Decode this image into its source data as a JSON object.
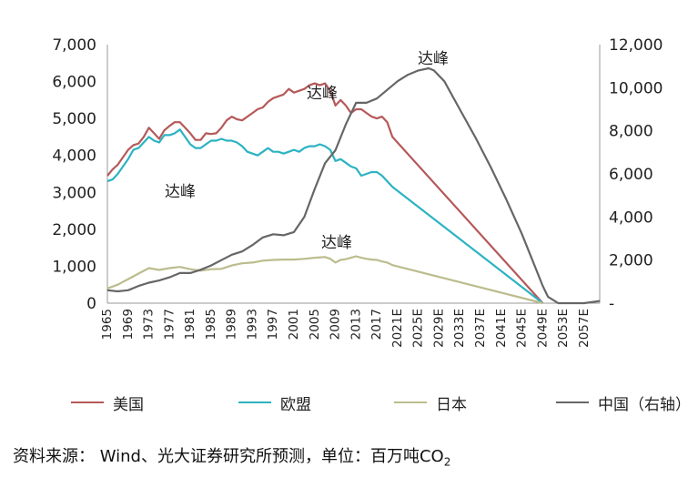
{
  "chart_data": {
    "type": "line",
    "title": "",
    "xlabel": "",
    "ylabel": "",
    "ylim": [
      0,
      7000
    ],
    "y2lim": [
      0,
      12000
    ],
    "y_ticks": [
      "7,000",
      "6,000",
      "5,000",
      "4,000",
      "3,000",
      "2,000",
      "1,000",
      "0"
    ],
    "y2_ticks": [
      "12,000",
      "10,000",
      "8,000",
      "6,000",
      "4,000",
      "2,000",
      "-"
    ],
    "x_ticks": [
      "1965",
      "1969",
      "1973",
      "1977",
      "1981",
      "1985",
      "1989",
      "1993",
      "1997",
      "2001",
      "2005",
      "2009",
      "2013",
      "2017",
      "2021E",
      "2025E",
      "2029E",
      "2033E",
      "2037E",
      "2041E",
      "2045E",
      "2049E",
      "2053E",
      "2057E"
    ],
    "x_range": [
      1965,
      2060
    ],
    "grid": false,
    "legend_position": "bottom",
    "series": [
      {
        "name": "美国",
        "axis": "left",
        "color": "#b5595a",
        "points": [
          [
            1965,
            3450
          ],
          [
            1966,
            3620
          ],
          [
            1967,
            3750
          ],
          [
            1968,
            3950
          ],
          [
            1969,
            4150
          ],
          [
            1970,
            4280
          ],
          [
            1971,
            4320
          ],
          [
            1972,
            4500
          ],
          [
            1973,
            4750
          ],
          [
            1974,
            4600
          ],
          [
            1975,
            4450
          ],
          [
            1976,
            4680
          ],
          [
            1977,
            4800
          ],
          [
            1978,
            4900
          ],
          [
            1979,
            4900
          ],
          [
            1980,
            4750
          ],
          [
            1981,
            4600
          ],
          [
            1982,
            4420
          ],
          [
            1983,
            4420
          ],
          [
            1984,
            4600
          ],
          [
            1985,
            4580
          ],
          [
            1986,
            4600
          ],
          [
            1987,
            4750
          ],
          [
            1988,
            4950
          ],
          [
            1989,
            5050
          ],
          [
            1990,
            4980
          ],
          [
            1991,
            4950
          ],
          [
            1992,
            5050
          ],
          [
            1993,
            5150
          ],
          [
            1994,
            5250
          ],
          [
            1995,
            5300
          ],
          [
            1996,
            5450
          ],
          [
            1997,
            5550
          ],
          [
            1998,
            5600
          ],
          [
            1999,
            5650
          ],
          [
            2000,
            5800
          ],
          [
            2001,
            5700
          ],
          [
            2002,
            5750
          ],
          [
            2003,
            5800
          ],
          [
            2004,
            5900
          ],
          [
            2005,
            5950
          ],
          [
            2006,
            5900
          ],
          [
            2007,
            5950
          ],
          [
            2008,
            5750
          ],
          [
            2009,
            5350
          ],
          [
            2010,
            5500
          ],
          [
            2011,
            5350
          ],
          [
            2012,
            5150
          ],
          [
            2013,
            5250
          ],
          [
            2014,
            5250
          ],
          [
            2015,
            5150
          ],
          [
            2016,
            5050
          ],
          [
            2017,
            5000
          ],
          [
            2018,
            5050
          ],
          [
            2019,
            4900
          ],
          [
            2020,
            4500
          ],
          [
            2049,
            0
          ]
        ]
      },
      {
        "name": "欧盟",
        "axis": "left",
        "color": "#2bb3c2",
        "points": [
          [
            1965,
            3300
          ],
          [
            1966,
            3350
          ],
          [
            1967,
            3500
          ],
          [
            1968,
            3700
          ],
          [
            1969,
            3900
          ],
          [
            1970,
            4150
          ],
          [
            1971,
            4200
          ],
          [
            1972,
            4350
          ],
          [
            1973,
            4500
          ],
          [
            1974,
            4400
          ],
          [
            1975,
            4350
          ],
          [
            1976,
            4550
          ],
          [
            1977,
            4550
          ],
          [
            1978,
            4600
          ],
          [
            1979,
            4700
          ],
          [
            1980,
            4500
          ],
          [
            1981,
            4300
          ],
          [
            1982,
            4200
          ],
          [
            1983,
            4200
          ],
          [
            1984,
            4300
          ],
          [
            1985,
            4400
          ],
          [
            1986,
            4400
          ],
          [
            1987,
            4450
          ],
          [
            1988,
            4400
          ],
          [
            1989,
            4400
          ],
          [
            1990,
            4350
          ],
          [
            1991,
            4250
          ],
          [
            1992,
            4100
          ],
          [
            1993,
            4050
          ],
          [
            1994,
            4000
          ],
          [
            1995,
            4100
          ],
          [
            1996,
            4200
          ],
          [
            1997,
            4100
          ],
          [
            1998,
            4100
          ],
          [
            1999,
            4050
          ],
          [
            2000,
            4100
          ],
          [
            2001,
            4150
          ],
          [
            2002,
            4100
          ],
          [
            2003,
            4200
          ],
          [
            2004,
            4250
          ],
          [
            2005,
            4250
          ],
          [
            2006,
            4300
          ],
          [
            2007,
            4250
          ],
          [
            2008,
            4150
          ],
          [
            2009,
            3850
          ],
          [
            2010,
            3900
          ],
          [
            2011,
            3800
          ],
          [
            2012,
            3700
          ],
          [
            2013,
            3650
          ],
          [
            2014,
            3450
          ],
          [
            2015,
            3500
          ],
          [
            2016,
            3550
          ],
          [
            2017,
            3550
          ],
          [
            2018,
            3450
          ],
          [
            2019,
            3300
          ],
          [
            2020,
            3150
          ],
          [
            2049,
            0
          ]
        ]
      },
      {
        "name": "日本",
        "axis": "left",
        "color": "#bcbc8e",
        "points": [
          [
            1965,
            400
          ],
          [
            1967,
            500
          ],
          [
            1969,
            650
          ],
          [
            1971,
            800
          ],
          [
            1973,
            950
          ],
          [
            1975,
            900
          ],
          [
            1977,
            950
          ],
          [
            1979,
            980
          ],
          [
            1981,
            920
          ],
          [
            1983,
            880
          ],
          [
            1985,
            920
          ],
          [
            1987,
            930
          ],
          [
            1989,
            1020
          ],
          [
            1991,
            1080
          ],
          [
            1993,
            1100
          ],
          [
            1995,
            1150
          ],
          [
            1997,
            1170
          ],
          [
            1999,
            1180
          ],
          [
            2001,
            1180
          ],
          [
            2003,
            1200
          ],
          [
            2005,
            1230
          ],
          [
            2007,
            1250
          ],
          [
            2008,
            1200
          ],
          [
            2009,
            1100
          ],
          [
            2010,
            1170
          ],
          [
            2011,
            1190
          ],
          [
            2012,
            1230
          ],
          [
            2013,
            1270
          ],
          [
            2014,
            1230
          ],
          [
            2015,
            1200
          ],
          [
            2016,
            1180
          ],
          [
            2017,
            1170
          ],
          [
            2018,
            1130
          ],
          [
            2019,
            1100
          ],
          [
            2020,
            1030
          ],
          [
            2049,
            0
          ]
        ]
      },
      {
        "name": "中国（右轴）",
        "axis": "right",
        "color": "#666666",
        "points": [
          [
            1965,
            600
          ],
          [
            1967,
            550
          ],
          [
            1969,
            600
          ],
          [
            1971,
            800
          ],
          [
            1973,
            950
          ],
          [
            1975,
            1050
          ],
          [
            1977,
            1200
          ],
          [
            1979,
            1400
          ],
          [
            1981,
            1400
          ],
          [
            1983,
            1550
          ],
          [
            1985,
            1750
          ],
          [
            1987,
            2000
          ],
          [
            1989,
            2250
          ],
          [
            1991,
            2400
          ],
          [
            1993,
            2700
          ],
          [
            1995,
            3050
          ],
          [
            1997,
            3200
          ],
          [
            1999,
            3150
          ],
          [
            2001,
            3300
          ],
          [
            2003,
            4000
          ],
          [
            2005,
            5300
          ],
          [
            2007,
            6500
          ],
          [
            2009,
            7100
          ],
          [
            2011,
            8300
          ],
          [
            2013,
            9300
          ],
          [
            2015,
            9300
          ],
          [
            2017,
            9500
          ],
          [
            2019,
            9900
          ],
          [
            2021,
            10300
          ],
          [
            2023,
            10600
          ],
          [
            2025,
            10800
          ],
          [
            2027,
            10900
          ],
          [
            2028,
            10800
          ],
          [
            2030,
            10300
          ],
          [
            2033,
            9000
          ],
          [
            2036,
            7700
          ],
          [
            2039,
            6300
          ],
          [
            2042,
            4800
          ],
          [
            2045,
            3200
          ],
          [
            2047,
            2000
          ],
          [
            2049,
            800
          ],
          [
            2050,
            300
          ],
          [
            2052,
            0
          ],
          [
            2057,
            0
          ],
          [
            2060,
            100
          ]
        ]
      }
    ],
    "annotations": [
      {
        "text": "达峰",
        "series": "美国"
      },
      {
        "text": "达峰",
        "series": "欧盟"
      },
      {
        "text": "达峰",
        "series": "日本"
      },
      {
        "text": "达峰",
        "series": "中国（右轴）"
      }
    ]
  },
  "source_text": "资料来源： Wind、光大证券研究所预测，单位：百万吨CO",
  "source_subscript": "2"
}
